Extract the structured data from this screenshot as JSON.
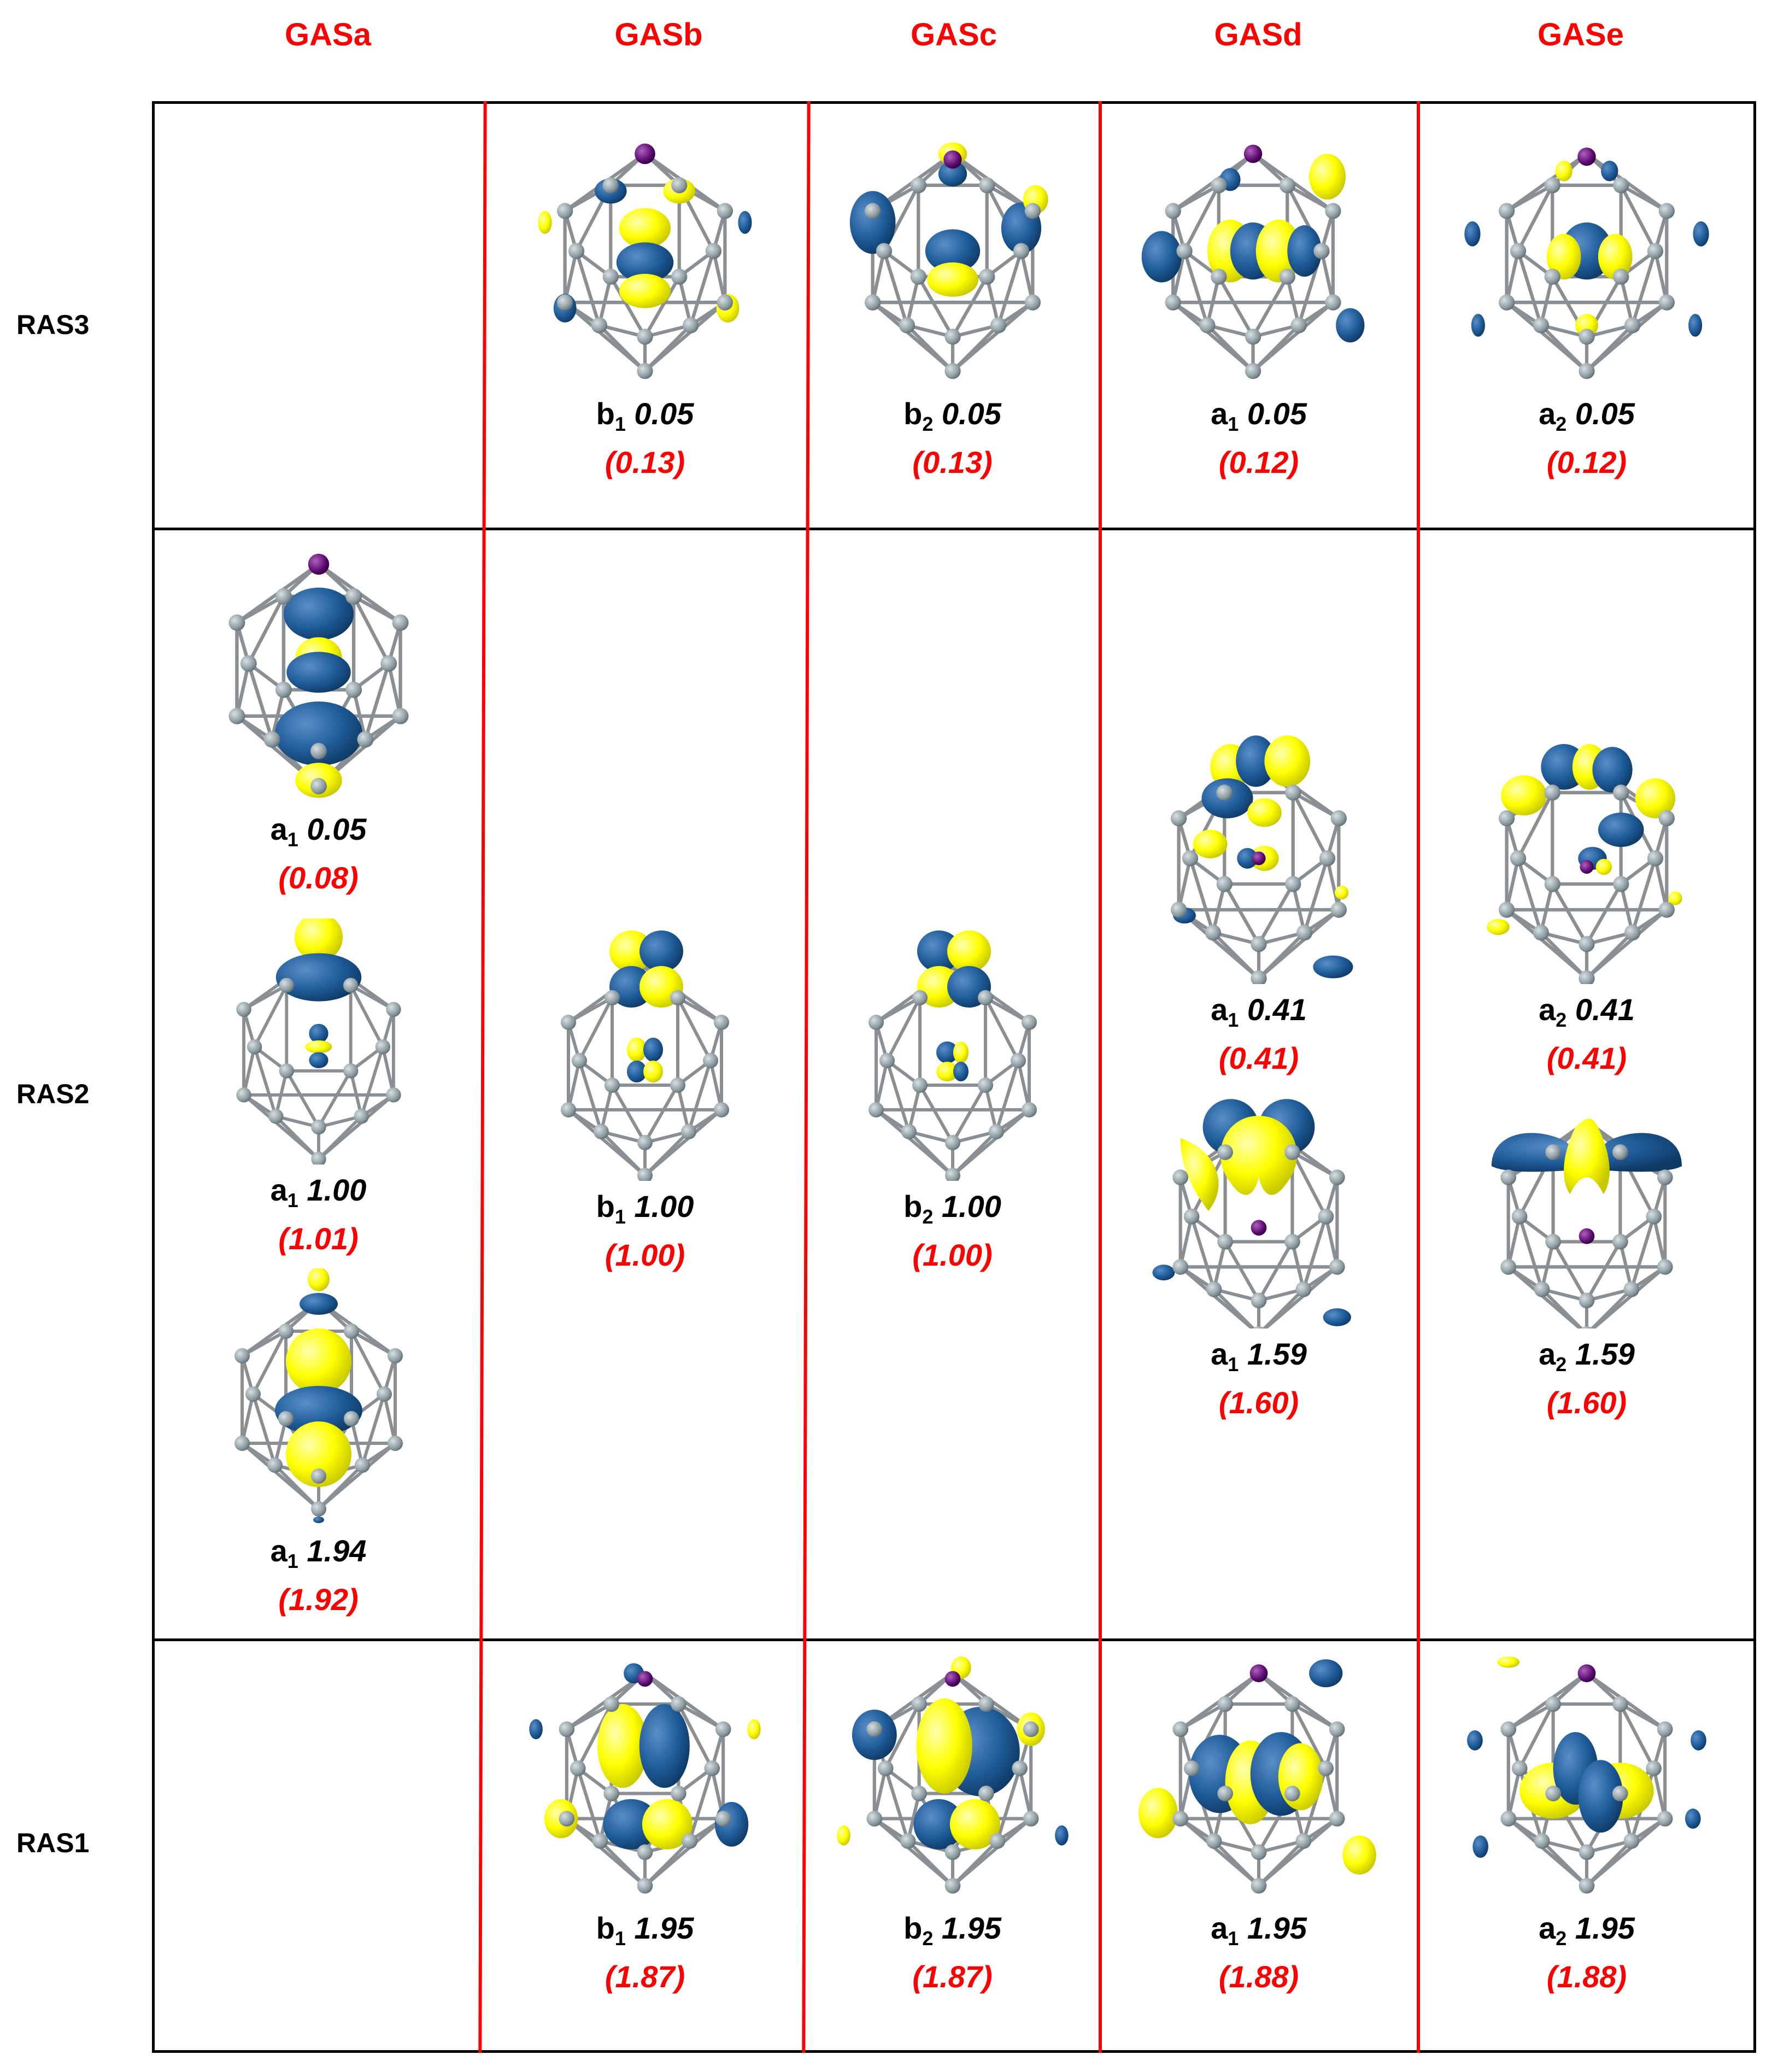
{
  "columns": [
    "GASa",
    "GASb",
    "GASc",
    "GASd",
    "GASe"
  ],
  "rows": [
    "RAS3",
    "RAS2",
    "RAS1"
  ],
  "colors": {
    "header": "#ff0000",
    "lobe_blue": "#1f5c99",
    "lobe_yellow": "#ffff00",
    "atom": "#8c9ba0",
    "metal": "#5a0a6e",
    "grid": "#000000",
    "divider": "#ff0000"
  },
  "cells": {
    "ras3": [
      null,
      {
        "sym": "b",
        "sub": "1",
        "occ": "0.05",
        "alt": "(0.13)"
      },
      {
        "sym": "b",
        "sub": "2",
        "occ": "0.05",
        "alt": "(0.13)"
      },
      {
        "sym": "a",
        "sub": "1",
        "occ": "0.05",
        "alt": "(0.12)"
      },
      {
        "sym": "a",
        "sub": "2",
        "occ": "0.05",
        "alt": "(0.12)"
      }
    ],
    "ras2_gasa": [
      {
        "sym": "a",
        "sub": "1",
        "occ": "0.05",
        "alt": "(0.08)"
      },
      {
        "sym": "a",
        "sub": "1",
        "occ": "1.00",
        "alt": "(1.01)"
      },
      {
        "sym": "a",
        "sub": "1",
        "occ": "1.94",
        "alt": "(1.92)"
      }
    ],
    "ras2_gasb": {
      "sym": "b",
      "sub": "1",
      "occ": "1.00",
      "alt": "(1.00)"
    },
    "ras2_gasc": {
      "sym": "b",
      "sub": "2",
      "occ": "1.00",
      "alt": "(1.00)"
    },
    "ras2_gasd": [
      {
        "sym": "a",
        "sub": "1",
        "occ": "0.41",
        "alt": "(0.41)"
      },
      {
        "sym": "a",
        "sub": "1",
        "occ": "1.59",
        "alt": "(1.60)"
      }
    ],
    "ras2_gase": [
      {
        "sym": "a",
        "sub": "2",
        "occ": "0.41",
        "alt": "(0.41)"
      },
      {
        "sym": "a",
        "sub": "2",
        "occ": "1.59",
        "alt": "(1.60)"
      }
    ],
    "ras1": [
      null,
      {
        "sym": "b",
        "sub": "1",
        "occ": "1.95",
        "alt": "(1.87)"
      },
      {
        "sym": "b",
        "sub": "2",
        "occ": "1.95",
        "alt": "(1.87)"
      },
      {
        "sym": "a",
        "sub": "1",
        "occ": "1.95",
        "alt": "(1.88)"
      },
      {
        "sym": "a",
        "sub": "2",
        "occ": "1.95",
        "alt": "(1.88)"
      }
    ]
  }
}
